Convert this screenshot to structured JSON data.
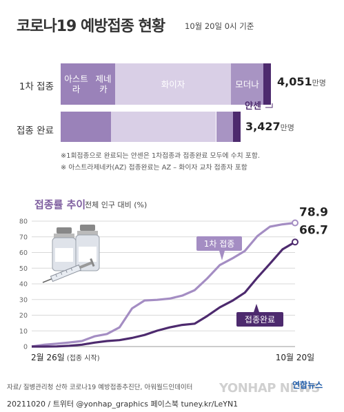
{
  "header": {
    "title": "코로나19 예방접종 현황",
    "basis": "10월 20일 0시 기준"
  },
  "colors": {
    "astrazeneca": "#9a82b9",
    "pfizer": "#d9cfe6",
    "moderna": "#a894c3",
    "janssen": "#4d2a6e",
    "line_first": "#a48dc3",
    "line_full": "#4d2a6e"
  },
  "status": {
    "rows": [
      {
        "label": "1차 접종",
        "total": "4,051",
        "unit": "만명",
        "segments": [
          {
            "name": "astrazeneca",
            "label_lines": [
              "아스트라",
              "제네카"
            ],
            "share": 0.259
          },
          {
            "name": "pfizer",
            "label_lines": [
              "화이자"
            ],
            "share": 0.551
          },
          {
            "name": "moderna",
            "label_lines": [
              "모더나"
            ],
            "share": 0.154
          },
          {
            "name": "janssen",
            "label_lines": [],
            "share": 0.036
          }
        ]
      },
      {
        "label": "접종 완료",
        "total": "3,427",
        "unit": "만명",
        "segments": [
          {
            "name": "astrazeneca",
            "label_lines": [],
            "share": 0.279
          },
          {
            "name": "pfizer",
            "label_lines": [],
            "share": 0.585
          },
          {
            "name": "moderna",
            "label_lines": [],
            "share": 0.095
          },
          {
            "name": "janssen",
            "label_lines": [],
            "share": 0.041
          }
        ]
      }
    ],
    "janssen_label": "얀센",
    "notes": [
      "※1회접종으로 완료되는 얀센은 1차접종과 접종완료 모두에 수치 포함.",
      "※ 아스트라제네카(AZ) 접종완료는 AZ – 화이자 교차 접종자 포함"
    ]
  },
  "trend": {
    "title": "접종률 추이",
    "caption": "전체 인구 대비 (%)"
  },
  "chart_data": {
    "type": "line",
    "title": "접종률 추이",
    "ylabel": "전체 인구 대비 (%)",
    "xlabel": "",
    "x_start_label": "2월 26일",
    "x_start_note": "(접종 시작)",
    "x_end_label": "10월 20일",
    "ylim": [
      0,
      80
    ],
    "yticks": [
      "0",
      "10",
      "20",
      "30",
      "40",
      "50",
      "60",
      "70",
      "80"
    ],
    "grid": true,
    "x": [
      "2/26",
      "3/15",
      "4/1",
      "4/15",
      "5/1",
      "5/15",
      "5/25",
      "6/1",
      "6/10",
      "6/20",
      "7/1",
      "7/15",
      "7/26",
      "8/1",
      "8/15",
      "8/26",
      "9/1",
      "9/10",
      "9/20",
      "10/1",
      "10/10",
      "10/20"
    ],
    "series": [
      {
        "name": "1차 접종",
        "values": [
          0,
          1.2,
          1.8,
          2.6,
          3.5,
          6.5,
          8.0,
          12.2,
          24.3,
          29.4,
          29.8,
          30.6,
          32.5,
          36.0,
          43.5,
          52.0,
          56.2,
          61.0,
          70.5,
          76.5,
          78.0,
          78.9
        ],
        "end_label": "78.9"
      },
      {
        "name": "접종완료",
        "values": [
          0,
          0,
          0.1,
          0.5,
          1.2,
          2.5,
          3.5,
          4.1,
          5.5,
          7.4,
          10.1,
          12.2,
          13.8,
          14.6,
          19.5,
          25.0,
          29.2,
          34.4,
          44.0,
          52.9,
          62.0,
          66.7
        ],
        "end_label": "66.7"
      }
    ]
  },
  "footer": {
    "source": "자료/ 질병관리청 산하 코로나19 예방접종추진단, 아워월드인데이터",
    "credit": "20211020 / 트위터 @yonhap_graphics  페이스북 tuney.kr/LeYN1",
    "brand": "연합뉴스",
    "watermark": "YONHAP NEWS"
  }
}
